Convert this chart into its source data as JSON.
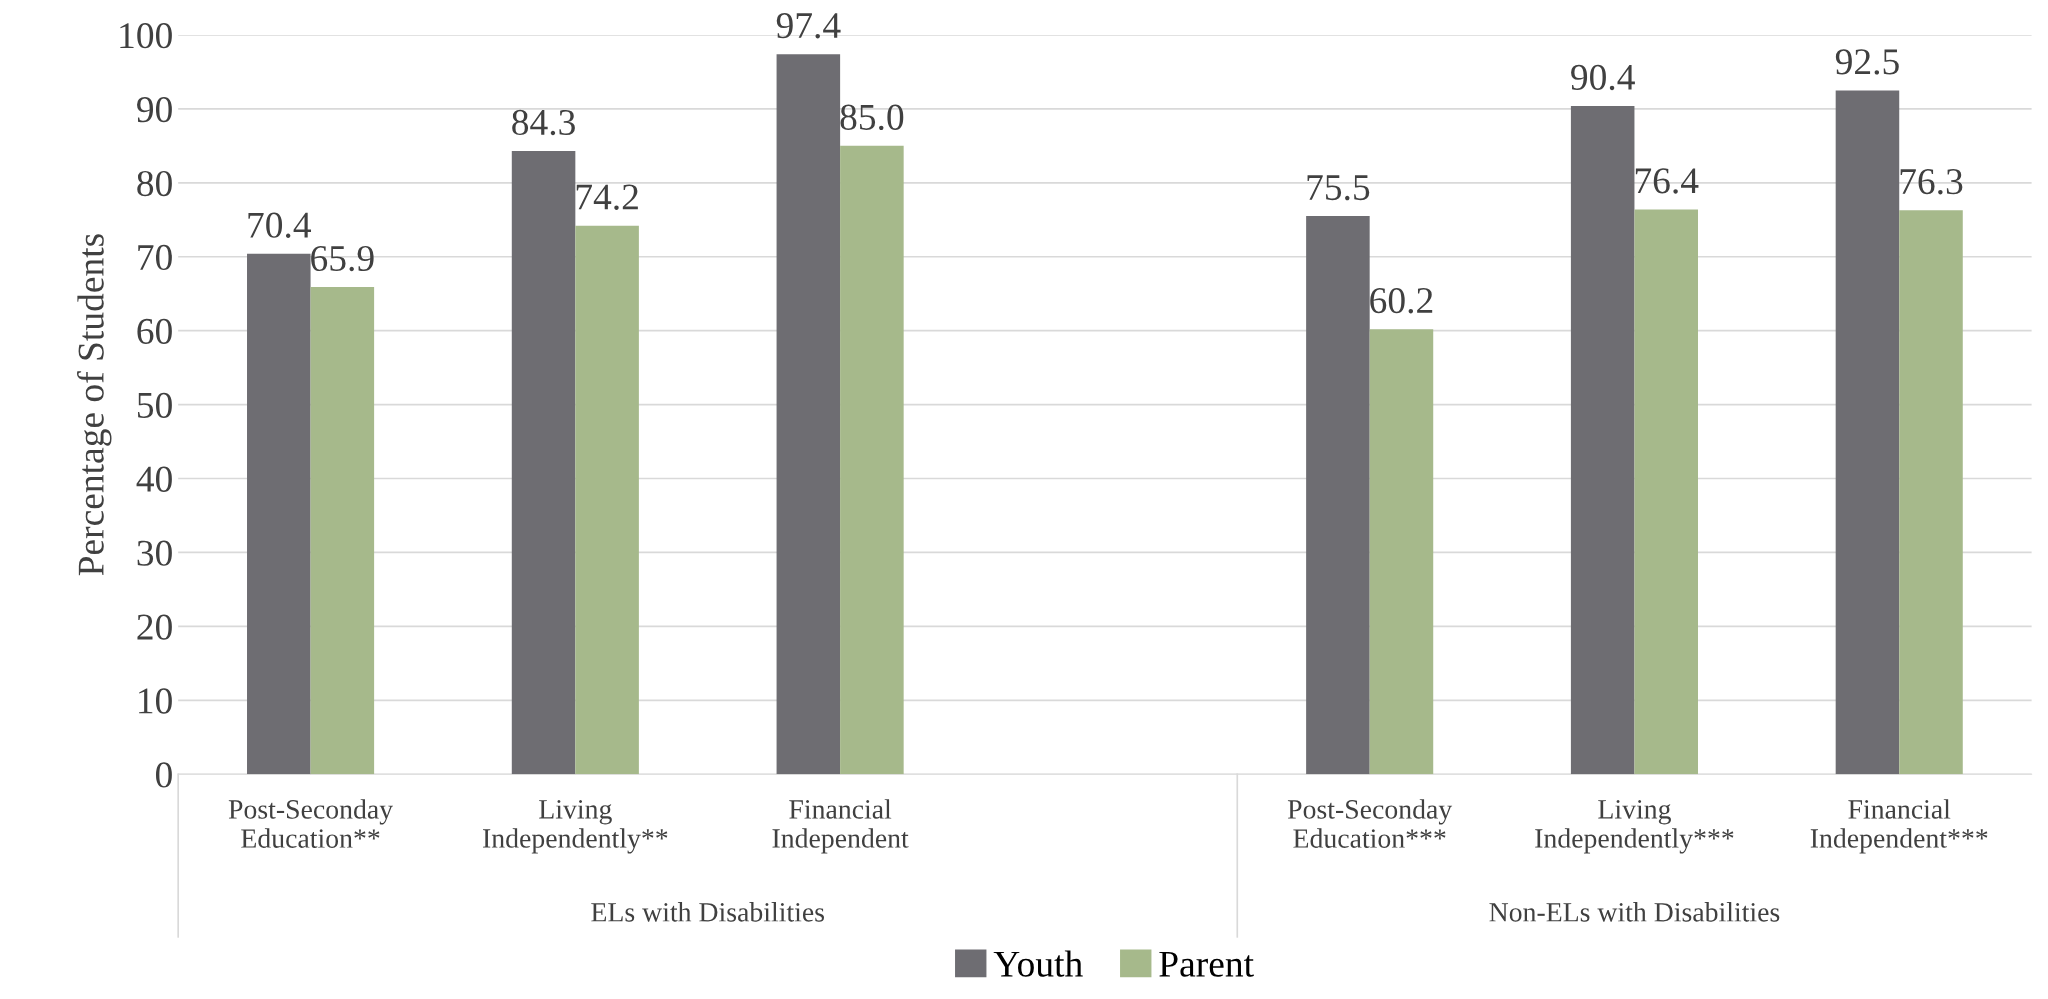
{
  "chart_data": {
    "type": "bar",
    "ylabel": "Percentage of Students",
    "categories": [
      "Post-Seconday\nEducation**",
      "Living\nIndependently**",
      "Financial\nIndependent",
      null,
      "Post-Seconday\nEducation***",
      "Living\nIndependently***",
      "Financial\nIndependent***"
    ],
    "series": [
      {
        "name": "Youth",
        "color": "#6e6d72",
        "values": [
          70.4,
          84.3,
          97.4,
          null,
          75.5,
          90.4,
          92.5
        ],
        "value_labels": [
          "70.4",
          "84.3",
          "97.4",
          null,
          "75.5",
          "90.4",
          "92.5"
        ]
      },
      {
        "name": "Parent",
        "color": "#a6b98b",
        "values": [
          65.9,
          74.2,
          85.0,
          null,
          60.2,
          76.4,
          76.3
        ],
        "value_labels": [
          "65.9",
          "74.2",
          "85.0",
          null,
          "60.2",
          "76.4",
          "76.3"
        ]
      }
    ],
    "annotations": [
      "ELs with Disabilities",
      "Non-ELs with Disabilities"
    ],
    "ylim": [
      0,
      100
    ],
    "yticks": [
      0,
      10,
      20,
      30,
      40,
      50,
      60,
      70,
      80,
      90,
      100
    ],
    "grid": "y",
    "legend": "bottom"
  }
}
